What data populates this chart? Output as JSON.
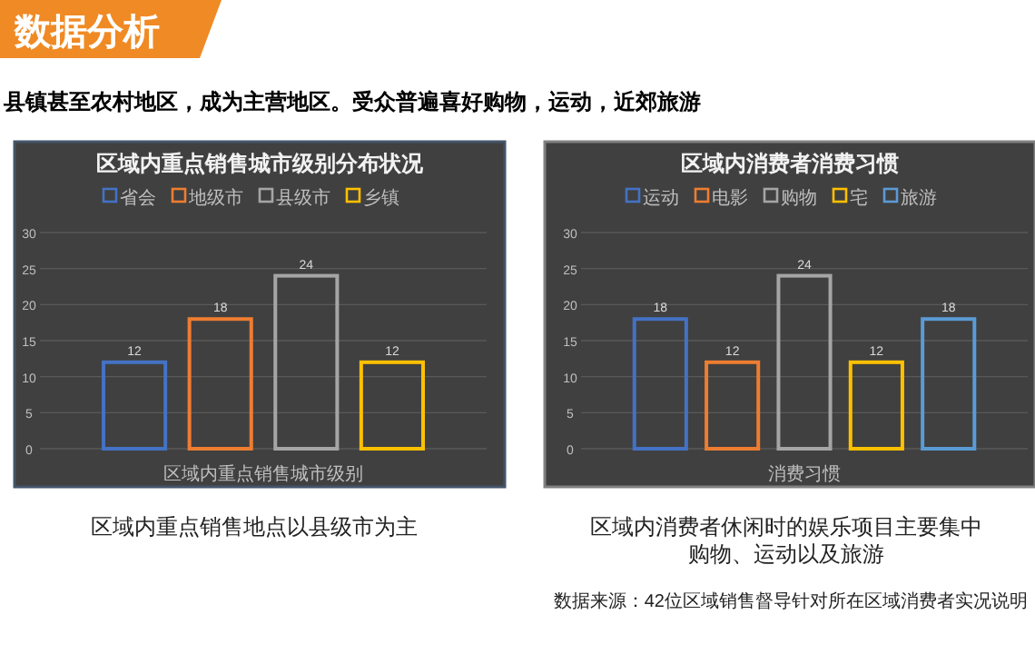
{
  "chart_data": [
    {
      "type": "bar",
      "title": "区域内重点销售城市级别分布状况",
      "xlabel": "区域内重点销售城市级别",
      "categories": [
        null
      ],
      "series": [
        {
          "name": "省会",
          "color": "#4472c4",
          "values": [
            12
          ]
        },
        {
          "name": "地级市",
          "color": "#ed7d31",
          "values": [
            18
          ]
        },
        {
          "name": "县级市",
          "color": "#a5a5a5",
          "values": [
            24
          ]
        },
        {
          "name": "乡镇",
          "color": "#ffc000",
          "values": [
            12
          ]
        }
      ],
      "ylim": [
        0,
        30
      ],
      "yticks": [
        0,
        5,
        10,
        15,
        20,
        25,
        30
      ],
      "grid": "y",
      "legend": "top",
      "data_labels": true,
      "annotations": [
        "数据分析",
        "县镇甚至农村地区，成为主营地区。受众普遍喜好购物，运动，近郊旅游",
        "区域内重点销售地点以县级市为主"
      ]
    },
    {
      "type": "bar",
      "title": "区域内消费者消费习惯",
      "xlabel": "消费习惯",
      "categories": [
        null
      ],
      "series": [
        {
          "name": "运动",
          "color": "#4472c4",
          "values": [
            18
          ]
        },
        {
          "name": "电影",
          "color": "#ed7d31",
          "values": [
            12
          ]
        },
        {
          "name": "购物",
          "color": "#a5a5a5",
          "values": [
            24
          ]
        },
        {
          "name": "宅",
          "color": "#ffc000",
          "values": [
            12
          ]
        },
        {
          "name": "旅游",
          "color": "#5b9bd5",
          "values": [
            18
          ]
        }
      ],
      "ylim": [
        0,
        30
      ],
      "yticks": [
        0,
        5,
        10,
        15,
        20,
        25,
        30
      ],
      "grid": "y",
      "legend": "top",
      "data_labels": true,
      "annotations": [
        "区域内消费者休闲时的娱乐项目主要集中购物、运动以及旅游",
        "数据来源：42位区域销售督导针对所在区域消费者实况说明"
      ]
    }
  ]
}
